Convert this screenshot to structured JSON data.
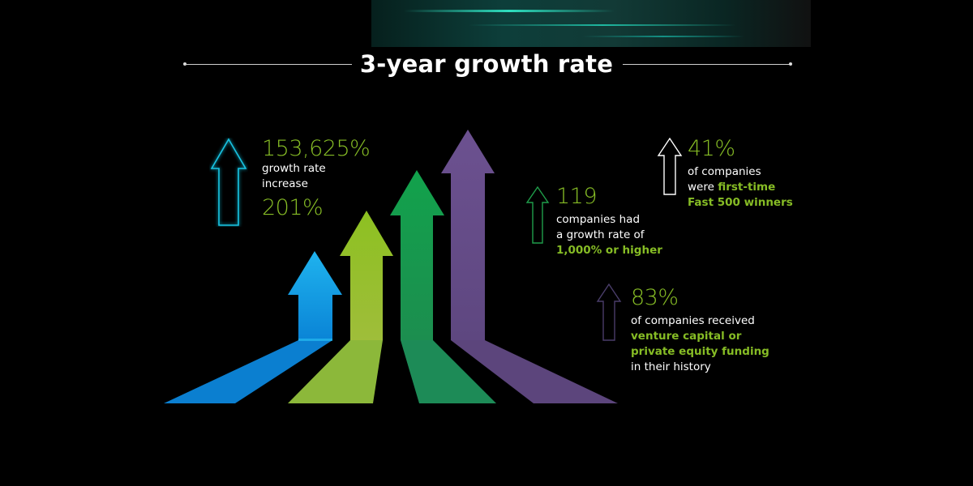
{
  "title": "3-year growth rate",
  "colors": {
    "accent_green": "#86bc25",
    "arrow_blue": "#0ea5e9",
    "arrow_lime": "#8dc021",
    "arrow_green": "#10a04a",
    "arrow_purple": "#6a4f88",
    "icon_cyan": "#19c4e3",
    "icon_green": "#1f9e4a",
    "icon_white": "#ffffff",
    "icon_purple": "#4a3d6a"
  },
  "stats": {
    "top_growth": {
      "value": "153,625%",
      "line1": "growth rate",
      "line2": "increase",
      "value2": "201%",
      "icon": "up-arrow-outline-icon"
    },
    "companies_119": {
      "value": "119",
      "line1": "companies had",
      "line2": "a growth rate of",
      "highlight": "1,000% or higher",
      "icon": "up-arrow-outline-icon"
    },
    "first_time": {
      "value": "41%",
      "line1": "of companies",
      "line2_pre": "were ",
      "line2_highlight": "first-time",
      "line3_highlight": "Fast 500 winners",
      "icon": "up-arrow-outline-icon"
    },
    "funding": {
      "value": "83%",
      "line1": "of companies received",
      "highlight1": "venture capital or",
      "highlight2": "private equity funding",
      "line_end": "in their history",
      "icon": "up-arrow-outline-icon"
    }
  }
}
